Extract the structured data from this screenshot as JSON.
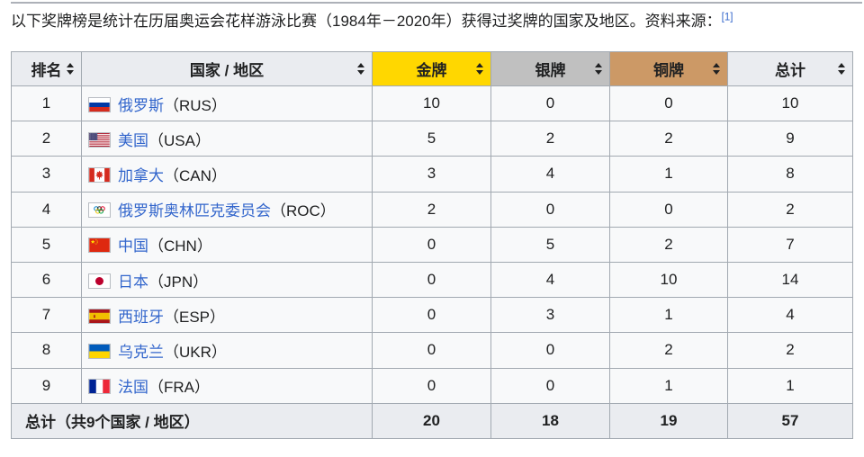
{
  "intro": {
    "text": "以下奖牌榜是统计在历届奥运会花样游泳比赛（1984年－2020年）获得过奖牌的国家及地区。资料来源：",
    "ref_label": "[1]"
  },
  "colors": {
    "gold_header": "#FFD700",
    "silver_header": "#C0C0C0",
    "bronze_header": "#CC9966",
    "plain_header": "#EAECF0",
    "row_bg": "#F8F9FA",
    "border": "#A2A9B1",
    "link": "#3366CC",
    "text": "#202122"
  },
  "table": {
    "columns": [
      {
        "key": "rank",
        "label": "排名",
        "bg": "#EAECF0",
        "sortable": true
      },
      {
        "key": "country",
        "label": "国家 / 地区",
        "bg": "#EAECF0",
        "sortable": true
      },
      {
        "key": "gold",
        "label": "金牌",
        "bg": "#FFD700",
        "sortable": true
      },
      {
        "key": "silver",
        "label": "银牌",
        "bg": "#C0C0C0",
        "sortable": true
      },
      {
        "key": "bronze",
        "label": "铜牌",
        "bg": "#CC9966",
        "sortable": true
      },
      {
        "key": "total",
        "label": "总计",
        "bg": "#EAECF0",
        "sortable": true
      }
    ],
    "rows": [
      {
        "rank": "1",
        "flag": "rus",
        "country": "俄罗斯",
        "code": "（RUS）",
        "gold": "10",
        "silver": "0",
        "bronze": "0",
        "total": "10"
      },
      {
        "rank": "2",
        "flag": "usa",
        "country": "美国",
        "code": "（USA）",
        "gold": "5",
        "silver": "2",
        "bronze": "2",
        "total": "9"
      },
      {
        "rank": "3",
        "flag": "can",
        "country": "加拿大",
        "code": "（CAN）",
        "gold": "3",
        "silver": "4",
        "bronze": "1",
        "total": "8"
      },
      {
        "rank": "4",
        "flag": "roc",
        "country": "俄罗斯奥林匹克委员会",
        "code": "（ROC）",
        "gold": "2",
        "silver": "0",
        "bronze": "0",
        "total": "2"
      },
      {
        "rank": "5",
        "flag": "chn",
        "country": "中国",
        "code": "（CHN）",
        "gold": "0",
        "silver": "5",
        "bronze": "2",
        "total": "7"
      },
      {
        "rank": "6",
        "flag": "jpn",
        "country": "日本",
        "code": "（JPN）",
        "gold": "0",
        "silver": "4",
        "bronze": "10",
        "total": "14"
      },
      {
        "rank": "7",
        "flag": "esp",
        "country": "西班牙",
        "code": "（ESP）",
        "gold": "0",
        "silver": "3",
        "bronze": "1",
        "total": "4"
      },
      {
        "rank": "8",
        "flag": "ukr",
        "country": "乌克兰",
        "code": "（UKR）",
        "gold": "0",
        "silver": "0",
        "bronze": "2",
        "total": "2"
      },
      {
        "rank": "9",
        "flag": "fra",
        "country": "法国",
        "code": "（FRA）",
        "gold": "0",
        "silver": "0",
        "bronze": "1",
        "total": "1"
      }
    ],
    "footer": {
      "label": "总计（共9个国家 / 地区）",
      "gold": "20",
      "silver": "18",
      "bronze": "19",
      "total": "57"
    }
  }
}
